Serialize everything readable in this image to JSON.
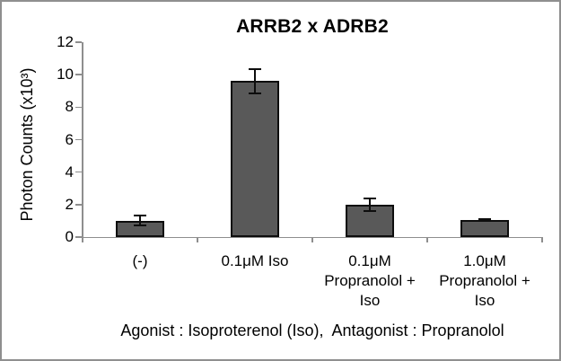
{
  "chart_data": {
    "type": "bar",
    "title": "ARRB2 x ADRB2",
    "ylabel": "Photon Counts (x10³)",
    "xlabel": "",
    "note": "Agonist : Isoproterenol (Iso),  Antagonist : Propranolol",
    "categories": [
      [
        "(-)"
      ],
      [
        "0.1μM Iso"
      ],
      [
        "0.1μM",
        "Propranolol +",
        "Iso"
      ],
      [
        "1.0μM",
        "Propranolol +",
        "Iso"
      ]
    ],
    "values": [
      1.0,
      9.6,
      2.0,
      1.05
    ],
    "error_bars": [
      0.3,
      0.75,
      0.4,
      0.05
    ],
    "ylim": [
      0,
      12
    ],
    "yticks": [
      0,
      2,
      4,
      6,
      8,
      10,
      12
    ],
    "grid": false,
    "legend_position": "none",
    "bar_color": "#595959",
    "bar_border_color": "#0d0d0d",
    "error_bar_color": "#0d0d0d",
    "axis_color": "#8e8e8e",
    "text_color": "#000000",
    "frame_border_color": "#8f8f8f",
    "background_color": "#ffffff"
  }
}
